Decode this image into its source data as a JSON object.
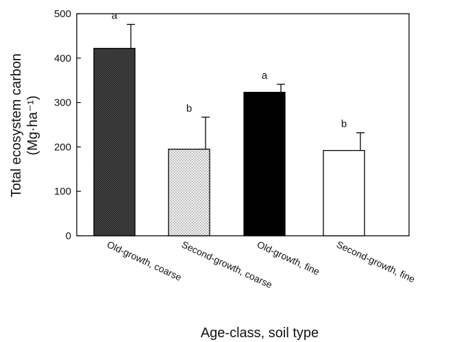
{
  "chart_data": {
    "type": "bar",
    "title": "",
    "xlabel": "Age-class, soil type",
    "ylabel_line1": "Total ecosystem carbon",
    "ylabel_line2": "(Mg·ha⁻¹)",
    "ylim": [
      0,
      500
    ],
    "yticks": [
      0,
      100,
      200,
      300,
      400,
      500
    ],
    "categories": [
      "Old-growth, coarse",
      "Second-growth, coarse",
      "Old-growth, fine",
      "Second-growth, fine"
    ],
    "values": [
      422,
      195,
      323,
      192
    ],
    "error_upper": [
      476,
      267,
      341,
      232
    ],
    "significance": [
      "a",
      "b",
      "a",
      "b"
    ],
    "bar_fills": [
      "dark-crosshatch",
      "light-stipple",
      "solid-black",
      "white"
    ],
    "colors": {
      "bar_edge": "#000000",
      "dark": "#3a3a3a",
      "light": "#dcdcdc",
      "solid": "#000000",
      "white": "#ffffff"
    },
    "grid": false,
    "legend": "none"
  }
}
